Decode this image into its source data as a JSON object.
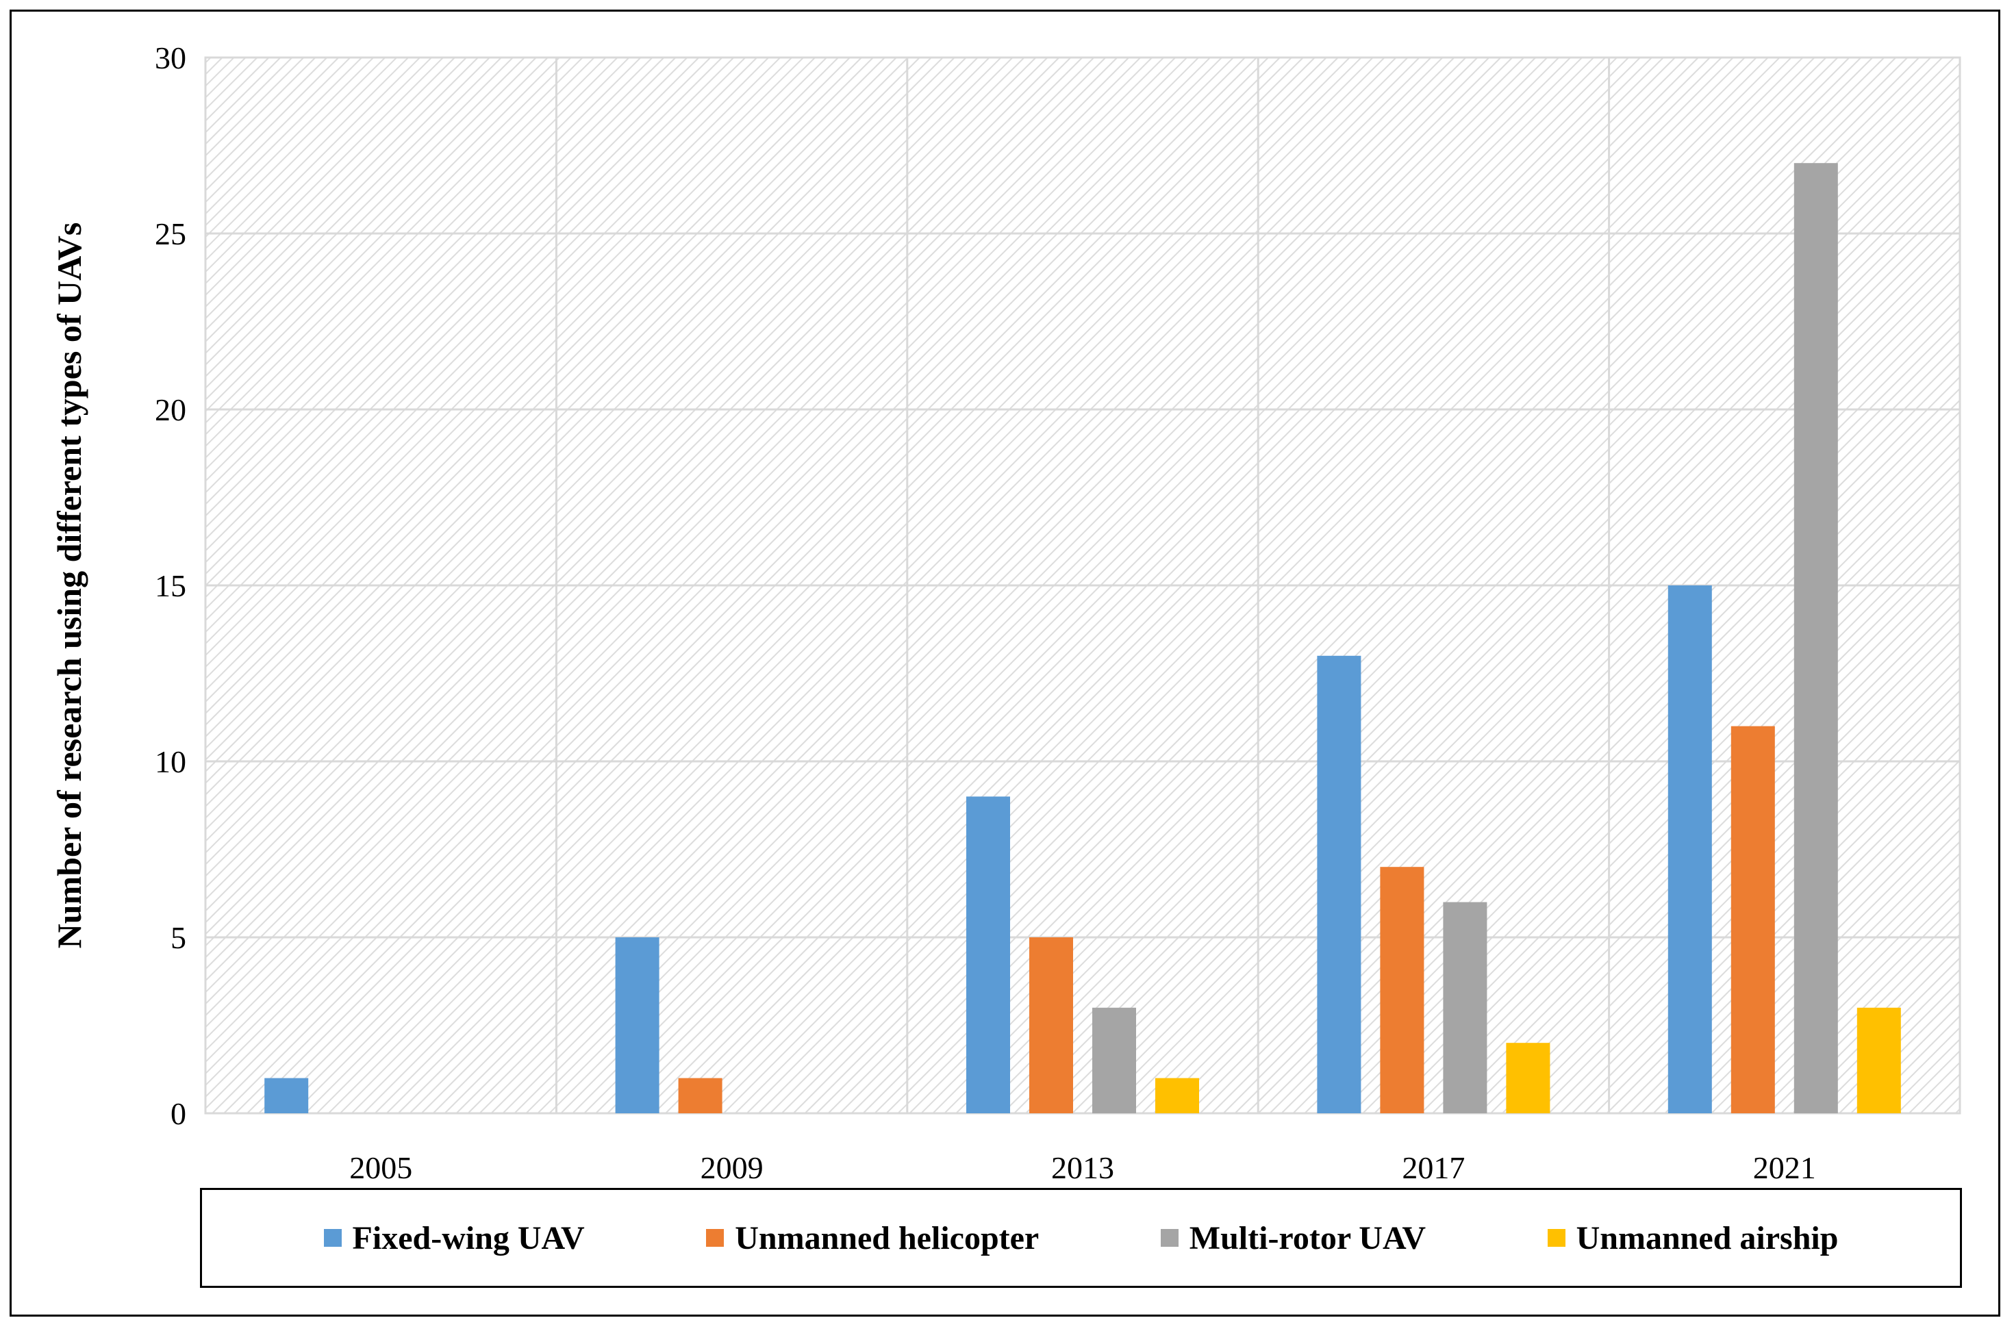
{
  "chart_data": {
    "type": "bar",
    "title": "",
    "xlabel": "",
    "ylabel": "Number of research using different types of UAVs",
    "categories": [
      "2005",
      "2009",
      "2013",
      "2017",
      "2021"
    ],
    "ylim": [
      0,
      30
    ],
    "yticks": [
      0,
      5,
      10,
      15,
      20,
      25,
      30
    ],
    "grid": true,
    "legend_position": "bottom",
    "series": [
      {
        "name": "Fixed-wing UAV",
        "color": "#5b9bd5",
        "values": [
          1,
          5,
          9,
          13,
          15
        ]
      },
      {
        "name": "Unmanned helicopter",
        "color": "#ed7d31",
        "values": [
          0,
          1,
          5,
          7,
          11
        ]
      },
      {
        "name": "Multi-rotor UAV",
        "color": "#a5a5a5",
        "values": [
          0,
          0,
          3,
          6,
          27
        ]
      },
      {
        "name": "Unmanned airship",
        "color": "#ffc000",
        "values": [
          0,
          0,
          1,
          2,
          3
        ]
      }
    ]
  }
}
